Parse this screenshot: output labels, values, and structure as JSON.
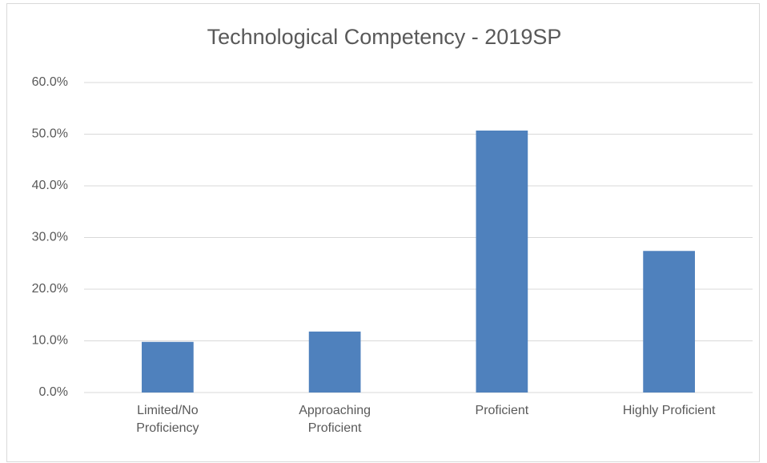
{
  "chart_data": {
    "type": "bar",
    "title": "Technological Competency - 2019SP",
    "categories": [
      "Limited/No Proficiency",
      "Approaching Proficient",
      "Proficient",
      "Highly Proficient"
    ],
    "values": [
      9.8,
      11.8,
      50.7,
      27.4
    ],
    "color": "#4f81bd",
    "ylim": [
      0,
      60
    ],
    "yticks": [
      {
        "value": 0,
        "label": "0.0%"
      },
      {
        "value": 10,
        "label": "10.0%"
      },
      {
        "value": 20,
        "label": "20.0%"
      },
      {
        "value": 30,
        "label": "30.0%"
      },
      {
        "value": 40,
        "label": "40.0%"
      },
      {
        "value": 50,
        "label": "50.0%"
      },
      {
        "value": 60,
        "label": "60.0%"
      }
    ],
    "grid": true
  }
}
